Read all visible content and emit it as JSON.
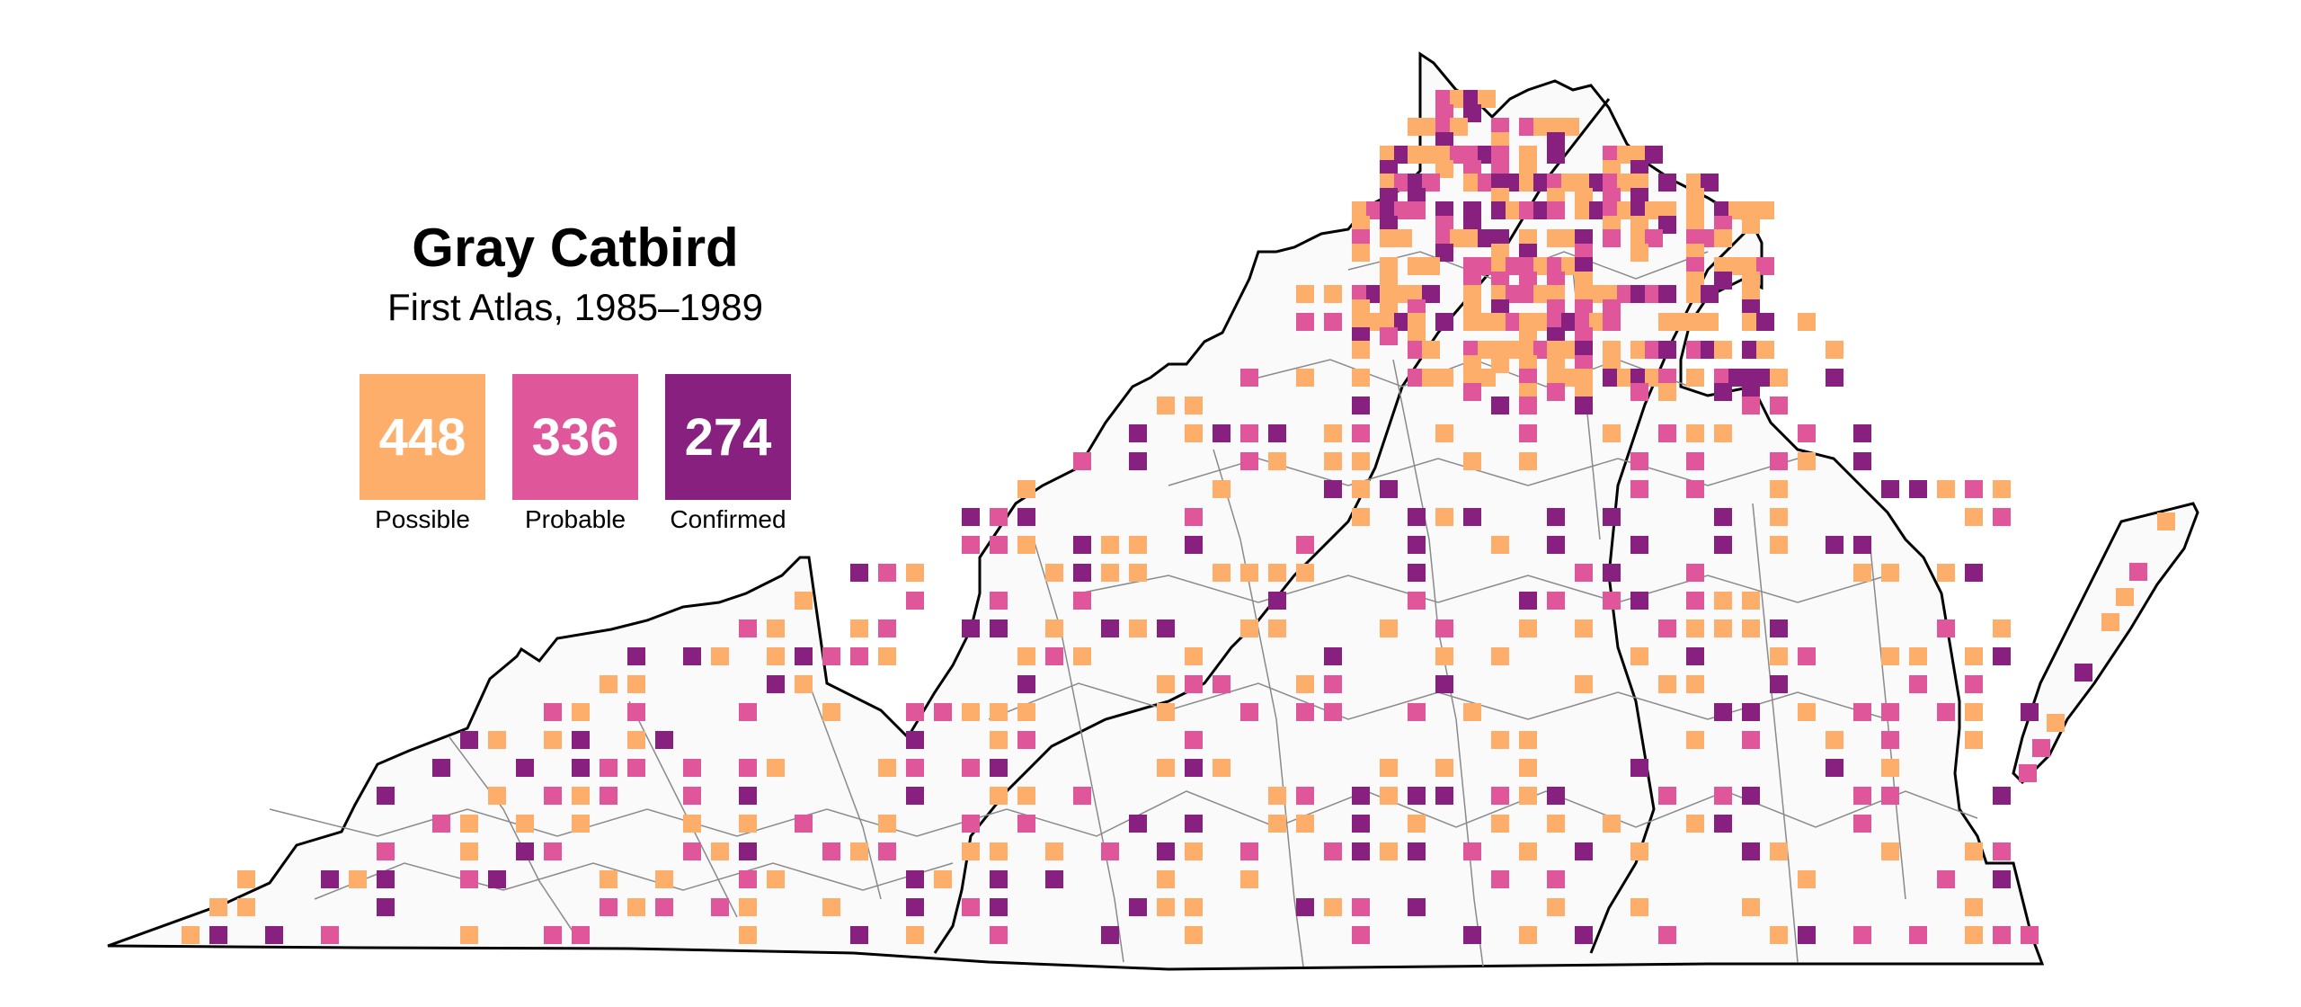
{
  "title": "Gray Catbird",
  "subtitle": "First Atlas, 1985–1989",
  "legend": [
    {
      "count": "448",
      "label": "Possible",
      "color": "#FDAE6B"
    },
    {
      "count": "336",
      "label": "Probable",
      "color": "#E0569A"
    },
    {
      "count": "274",
      "label": "Confirmed",
      "color": "#88207F"
    }
  ],
  "map": {
    "land_fill": "#FAFAFA",
    "state_outline": "#000000",
    "county_lines": "#8A8A8A",
    "region_boundaries": "#000000"
  }
}
